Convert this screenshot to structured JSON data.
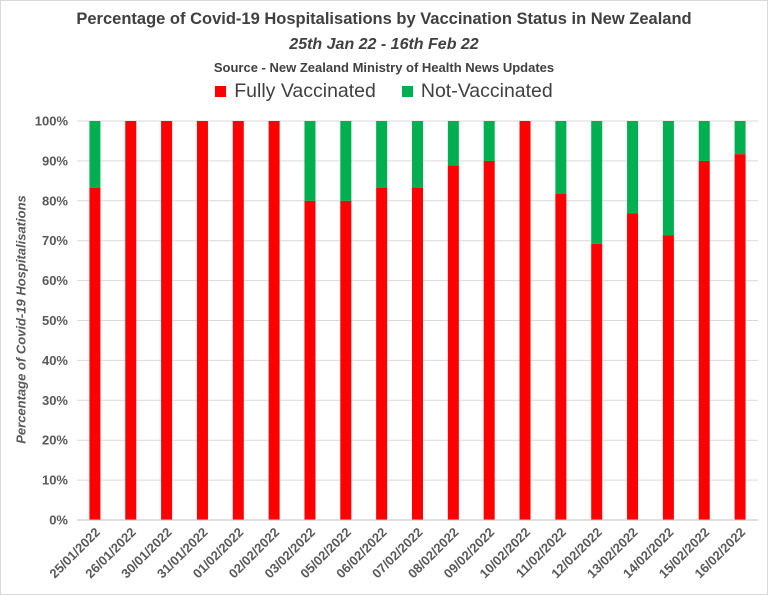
{
  "chart_data": {
    "type": "bar",
    "stacked": true,
    "title": "Percentage of Covid-19 Hospitalisations by Vaccination Status in New Zealand",
    "subtitle": "25th Jan 22 - 16th Feb 22",
    "source": "Source - New Zealand Ministry of Health News Updates",
    "xlabel": "",
    "ylabel": "Percentage of Covid-19 Hospitalisations",
    "ylim": [
      0,
      100
    ],
    "yticks": [
      "0%",
      "10%",
      "20%",
      "30%",
      "40%",
      "50%",
      "60%",
      "70%",
      "80%",
      "90%",
      "100%"
    ],
    "grid": true,
    "legend_position": "top",
    "categories": [
      "25/01/2022",
      "26/01/2022",
      "30/01/2022",
      "31/01/2022",
      "01/02/2022",
      "02/02/2022",
      "03/02/2022",
      "05/02/2022",
      "06/02/2022",
      "07/02/2022",
      "08/02/2022",
      "09/02/2022",
      "10/02/2022",
      "11/02/2022",
      "12/02/2022",
      "13/02/2022",
      "14/02/2022",
      "15/02/2022",
      "16/02/2022"
    ],
    "series": [
      {
        "name": "Fully Vaccinated",
        "color": "#ff0000",
        "values": [
          83.3,
          100,
          100,
          100,
          100,
          100,
          80,
          80,
          83.3,
          83.3,
          88.9,
          90,
          100,
          81.8,
          69.2,
          76.9,
          71.4,
          90,
          91.7
        ]
      },
      {
        "name": "Not-Vaccinated",
        "color": "#00b050",
        "values": [
          16.7,
          0,
          0,
          0,
          0,
          0,
          20,
          20,
          16.7,
          16.7,
          11.1,
          10,
          0,
          18.2,
          30.8,
          23.1,
          28.6,
          10,
          8.3
        ]
      }
    ]
  }
}
